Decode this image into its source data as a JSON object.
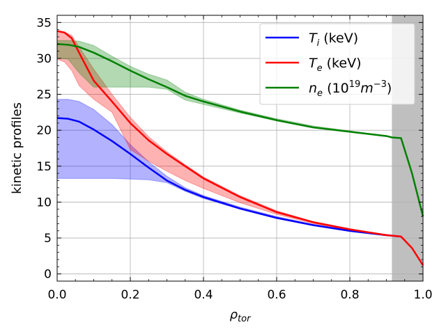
{
  "chart_data": {
    "type": "line",
    "title": "",
    "xlabel_main": "ρ",
    "xlabel_sub": "tor",
    "ylabel": "kinetic profiles",
    "xlim": [
      0.0,
      1.0
    ],
    "ylim": [
      -1.0,
      36.0
    ],
    "xticks": [
      0.0,
      0.2,
      0.4,
      0.6,
      0.8,
      1.0
    ],
    "xtick_labels": [
      "0.0",
      "0.2",
      "0.4",
      "0.6",
      "0.8",
      "1.0"
    ],
    "yticks": [
      0,
      5,
      10,
      15,
      20,
      25,
      30,
      35
    ],
    "ytick_labels": [
      "0",
      "5",
      "10",
      "15",
      "20",
      "25",
      "30",
      "35"
    ],
    "grid": true,
    "legend_position": "top-right",
    "shaded_region": {
      "x_start": 0.915,
      "x_end": 1.0,
      "color": "#bfbfbf"
    },
    "series": [
      {
        "name": "Ti",
        "legend_main": "T",
        "legend_sub": "i",
        "legend_unit": " (keV)",
        "color": "#0000ff",
        "band_color": "#0000ff",
        "x": [
          0.0,
          0.03,
          0.06,
          0.1,
          0.15,
          0.2,
          0.25,
          0.3,
          0.35,
          0.4,
          0.5,
          0.6,
          0.7,
          0.8,
          0.9,
          0.94
        ],
        "values": [
          21.7,
          21.6,
          21.2,
          20.1,
          18.5,
          16.7,
          14.8,
          13.0,
          11.7,
          10.7,
          9.1,
          7.8,
          6.8,
          6.0,
          5.4,
          5.2
        ],
        "upper": [
          24.3,
          24.3,
          24.0,
          22.9,
          20.8,
          18.0,
          15.6,
          13.6,
          12.0,
          10.9,
          9.3,
          8.0,
          6.9,
          6.1,
          5.4,
          5.2
        ],
        "lower": [
          13.3,
          13.3,
          13.3,
          13.3,
          13.3,
          13.2,
          13.1,
          12.7,
          11.5,
          10.5,
          9.0,
          7.7,
          6.7,
          5.9,
          5.3,
          5.2
        ]
      },
      {
        "name": "Te",
        "legend_main": "T",
        "legend_sub": "e",
        "legend_unit": " (keV)",
        "color": "#ff0000",
        "band_color": "#ff0000",
        "x": [
          0.0,
          0.02,
          0.04,
          0.06,
          0.1,
          0.15,
          0.2,
          0.25,
          0.3,
          0.35,
          0.4,
          0.5,
          0.6,
          0.7,
          0.8,
          0.9,
          0.94,
          0.97,
          1.0
        ],
        "values": [
          33.8,
          33.6,
          32.8,
          30.8,
          26.9,
          24.0,
          21.0,
          18.6,
          16.7,
          15.0,
          13.3,
          10.7,
          8.6,
          7.2,
          6.2,
          5.4,
          5.2,
          3.6,
          1.2
        ],
        "upper": [
          33.9,
          33.7,
          33.2,
          31.6,
          28.5,
          25.0,
          21.8,
          19.1,
          17.0,
          15.2,
          13.5,
          10.9,
          8.8,
          7.3,
          6.3,
          5.4,
          5.2,
          3.6,
          1.2
        ],
        "lower": [
          29.9,
          29.5,
          28.3,
          26.2,
          24.3,
          22.5,
          17.3,
          15.7,
          14.3,
          13.0,
          11.9,
          9.9,
          8.3,
          7.0,
          6.1,
          5.3,
          5.2,
          3.6,
          1.2
        ]
      },
      {
        "name": "ne",
        "legend_main": "n",
        "legend_sub": "e",
        "legend_unit_prefix": " (10",
        "legend_unit_exp": "19",
        "legend_unit_mid": "m",
        "legend_unit_mexp": "−3",
        "legend_unit_suffix": ")",
        "color": "#008000",
        "band_color": "#008000",
        "x": [
          0.0,
          0.03,
          0.06,
          0.1,
          0.15,
          0.2,
          0.25,
          0.3,
          0.35,
          0.4,
          0.5,
          0.6,
          0.7,
          0.8,
          0.9,
          0.915,
          0.94,
          0.97,
          1.0
        ],
        "values": [
          32.0,
          31.9,
          31.6,
          30.8,
          29.6,
          28.3,
          27.1,
          26.0,
          24.8,
          24.0,
          22.6,
          21.4,
          20.4,
          19.8,
          19.2,
          19.0,
          18.9,
          14.0,
          8.0
        ],
        "upper": [
          32.5,
          32.5,
          32.4,
          31.8,
          30.3,
          28.9,
          27.8,
          27.0,
          25.3,
          24.3,
          22.8,
          21.6,
          20.6,
          19.9,
          19.2,
          19.0,
          18.9,
          14.0,
          8.0
        ],
        "lower": [
          30.0,
          29.9,
          28.0,
          26.0,
          26.0,
          26.0,
          26.0,
          25.7,
          24.2,
          23.6,
          22.4,
          21.3,
          20.3,
          19.7,
          19.1,
          19.0,
          18.9,
          14.0,
          8.0
        ]
      }
    ]
  }
}
